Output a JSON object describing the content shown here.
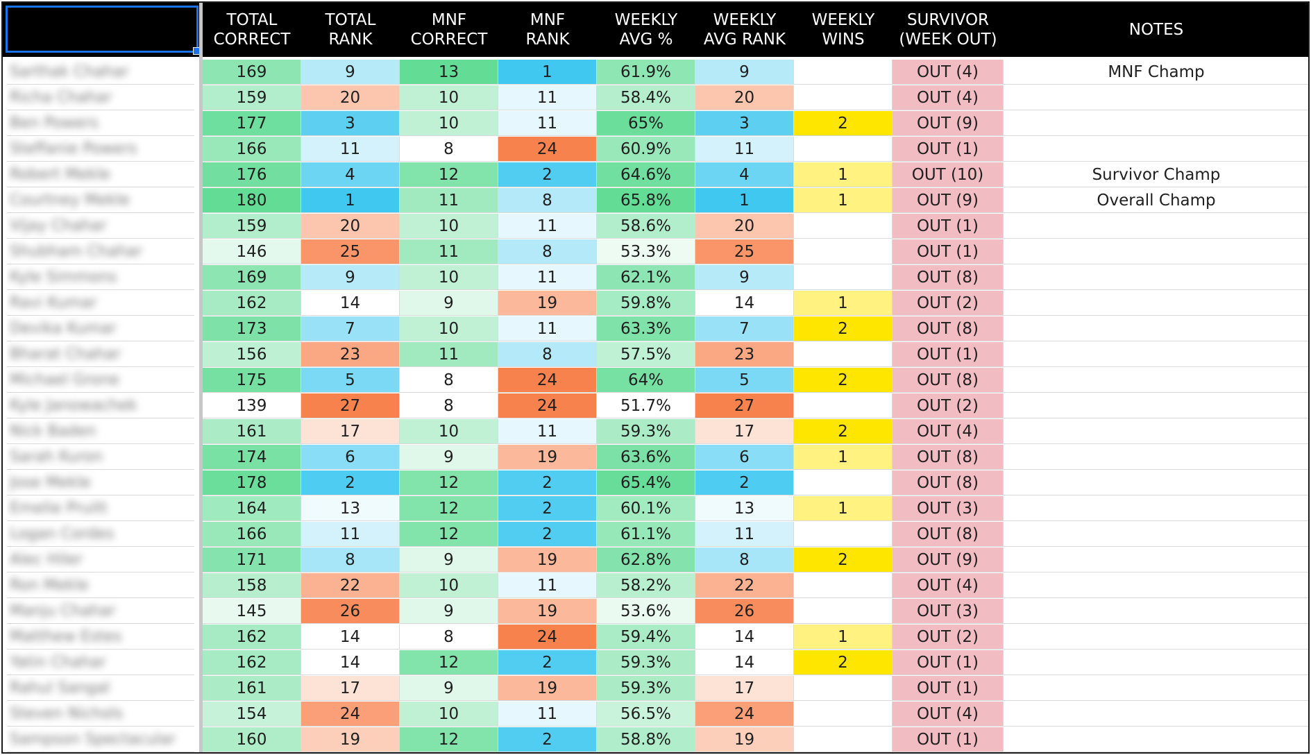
{
  "headers": [
    "",
    "TOTAL\nCORRECT",
    "TOTAL\nRANK",
    "MNF\nCORRECT",
    "MNF\nRANK",
    "WEEKLY\nAVG %",
    "WEEKLY\nAVG RANK",
    "WEEKLY\nWINS",
    "SURVIVOR\n(WEEK OUT)",
    "NOTES"
  ],
  "colors": {
    "header_bg": "#000000",
    "header_text": "#ffffff",
    "green_best": "#63dc96",
    "blue_best": "#40c8f0",
    "orange_worst": "#f8824e",
    "yellow_high": "#ffe600",
    "yellow_low": "#fff280",
    "survivor_bg": "#f2bcc3",
    "selection": "#1a73e8"
  },
  "rows": [
    {
      "name": "Sarthak Chahar",
      "total_correct": "169",
      "total_rank": "9",
      "mnf_correct": "13",
      "mnf_rank": "1",
      "weekly_avg": "61.9%",
      "weekly_avg_rank": "9",
      "weekly_wins": "",
      "survivor": "OUT (4)",
      "notes": "MNF Champ"
    },
    {
      "name": "Richa Chahar",
      "total_correct": "159",
      "total_rank": "20",
      "mnf_correct": "10",
      "mnf_rank": "11",
      "weekly_avg": "58.4%",
      "weekly_avg_rank": "20",
      "weekly_wins": "",
      "survivor": "OUT (4)",
      "notes": ""
    },
    {
      "name": "Ben Powers",
      "total_correct": "177",
      "total_rank": "3",
      "mnf_correct": "10",
      "mnf_rank": "11",
      "weekly_avg": "65%",
      "weekly_avg_rank": "3",
      "weekly_wins": "2",
      "survivor": "OUT (9)",
      "notes": ""
    },
    {
      "name": "Steffanie Powers",
      "total_correct": "166",
      "total_rank": "11",
      "mnf_correct": "8",
      "mnf_rank": "24",
      "weekly_avg": "60.9%",
      "weekly_avg_rank": "11",
      "weekly_wins": "",
      "survivor": "OUT (1)",
      "notes": ""
    },
    {
      "name": "Robert Mekle",
      "total_correct": "176",
      "total_rank": "4",
      "mnf_correct": "12",
      "mnf_rank": "2",
      "weekly_avg": "64.6%",
      "weekly_avg_rank": "4",
      "weekly_wins": "1",
      "survivor": "OUT (10)",
      "notes": "Survivor Champ"
    },
    {
      "name": "Courtney Mekle",
      "total_correct": "180",
      "total_rank": "1",
      "mnf_correct": "11",
      "mnf_rank": "8",
      "weekly_avg": "65.8%",
      "weekly_avg_rank": "1",
      "weekly_wins": "1",
      "survivor": "OUT (9)",
      "notes": "Overall Champ"
    },
    {
      "name": "Vijay Chahar",
      "total_correct": "159",
      "total_rank": "20",
      "mnf_correct": "10",
      "mnf_rank": "11",
      "weekly_avg": "58.6%",
      "weekly_avg_rank": "20",
      "weekly_wins": "",
      "survivor": "OUT (1)",
      "notes": ""
    },
    {
      "name": "Shubham Chahar",
      "total_correct": "146",
      "total_rank": "25",
      "mnf_correct": "11",
      "mnf_rank": "8",
      "weekly_avg": "53.3%",
      "weekly_avg_rank": "25",
      "weekly_wins": "",
      "survivor": "OUT (1)",
      "notes": ""
    },
    {
      "name": "Kyle Simmons",
      "total_correct": "169",
      "total_rank": "9",
      "mnf_correct": "10",
      "mnf_rank": "11",
      "weekly_avg": "62.1%",
      "weekly_avg_rank": "9",
      "weekly_wins": "",
      "survivor": "OUT (8)",
      "notes": ""
    },
    {
      "name": "Ravi Kumar",
      "total_correct": "162",
      "total_rank": "14",
      "mnf_correct": "9",
      "mnf_rank": "19",
      "weekly_avg": "59.8%",
      "weekly_avg_rank": "14",
      "weekly_wins": "1",
      "survivor": "OUT (2)",
      "notes": ""
    },
    {
      "name": "Devika Kumar",
      "total_correct": "173",
      "total_rank": "7",
      "mnf_correct": "10",
      "mnf_rank": "11",
      "weekly_avg": "63.3%",
      "weekly_avg_rank": "7",
      "weekly_wins": "2",
      "survivor": "OUT (8)",
      "notes": ""
    },
    {
      "name": "Bharat Chahar",
      "total_correct": "156",
      "total_rank": "23",
      "mnf_correct": "11",
      "mnf_rank": "8",
      "weekly_avg": "57.5%",
      "weekly_avg_rank": "23",
      "weekly_wins": "",
      "survivor": "OUT (1)",
      "notes": ""
    },
    {
      "name": "Michael Grone",
      "total_correct": "175",
      "total_rank": "5",
      "mnf_correct": "8",
      "mnf_rank": "24",
      "weekly_avg": "64%",
      "weekly_avg_rank": "5",
      "weekly_wins": "2",
      "survivor": "OUT (8)",
      "notes": ""
    },
    {
      "name": "Kyle Janowachek",
      "total_correct": "139",
      "total_rank": "27",
      "mnf_correct": "8",
      "mnf_rank": "24",
      "weekly_avg": "51.7%",
      "weekly_avg_rank": "27",
      "weekly_wins": "",
      "survivor": "OUT (2)",
      "notes": ""
    },
    {
      "name": "Nick Baden",
      "total_correct": "161",
      "total_rank": "17",
      "mnf_correct": "10",
      "mnf_rank": "11",
      "weekly_avg": "59.3%",
      "weekly_avg_rank": "17",
      "weekly_wins": "2",
      "survivor": "OUT (4)",
      "notes": ""
    },
    {
      "name": "Sarah Kuron",
      "total_correct": "174",
      "total_rank": "6",
      "mnf_correct": "9",
      "mnf_rank": "19",
      "weekly_avg": "63.6%",
      "weekly_avg_rank": "6",
      "weekly_wins": "1",
      "survivor": "OUT (8)",
      "notes": ""
    },
    {
      "name": "Jose Mekle",
      "total_correct": "178",
      "total_rank": "2",
      "mnf_correct": "12",
      "mnf_rank": "2",
      "weekly_avg": "65.4%",
      "weekly_avg_rank": "2",
      "weekly_wins": "",
      "survivor": "OUT (8)",
      "notes": ""
    },
    {
      "name": "Emelie Pruitt",
      "total_correct": "164",
      "total_rank": "13",
      "mnf_correct": "12",
      "mnf_rank": "2",
      "weekly_avg": "60.1%",
      "weekly_avg_rank": "13",
      "weekly_wins": "1",
      "survivor": "OUT (3)",
      "notes": ""
    },
    {
      "name": "Logan Cordes",
      "total_correct": "166",
      "total_rank": "11",
      "mnf_correct": "12",
      "mnf_rank": "2",
      "weekly_avg": "61.1%",
      "weekly_avg_rank": "11",
      "weekly_wins": "",
      "survivor": "OUT (8)",
      "notes": ""
    },
    {
      "name": "Alec Hiler",
      "total_correct": "171",
      "total_rank": "8",
      "mnf_correct": "9",
      "mnf_rank": "19",
      "weekly_avg": "62.8%",
      "weekly_avg_rank": "8",
      "weekly_wins": "2",
      "survivor": "OUT (9)",
      "notes": ""
    },
    {
      "name": "Ron Mekle",
      "total_correct": "158",
      "total_rank": "22",
      "mnf_correct": "10",
      "mnf_rank": "11",
      "weekly_avg": "58.2%",
      "weekly_avg_rank": "22",
      "weekly_wins": "",
      "survivor": "OUT (4)",
      "notes": ""
    },
    {
      "name": "Manju Chahar",
      "total_correct": "145",
      "total_rank": "26",
      "mnf_correct": "9",
      "mnf_rank": "19",
      "weekly_avg": "53.6%",
      "weekly_avg_rank": "26",
      "weekly_wins": "",
      "survivor": "OUT (3)",
      "notes": ""
    },
    {
      "name": "Matthew Estes",
      "total_correct": "162",
      "total_rank": "14",
      "mnf_correct": "8",
      "mnf_rank": "24",
      "weekly_avg": "59.4%",
      "weekly_avg_rank": "14",
      "weekly_wins": "1",
      "survivor": "OUT (2)",
      "notes": ""
    },
    {
      "name": "Yatin Chahar",
      "total_correct": "162",
      "total_rank": "14",
      "mnf_correct": "12",
      "mnf_rank": "2",
      "weekly_avg": "59.3%",
      "weekly_avg_rank": "14",
      "weekly_wins": "2",
      "survivor": "OUT (1)",
      "notes": ""
    },
    {
      "name": "Rahul Sangal",
      "total_correct": "161",
      "total_rank": "17",
      "mnf_correct": "9",
      "mnf_rank": "19",
      "weekly_avg": "59.3%",
      "weekly_avg_rank": "17",
      "weekly_wins": "",
      "survivor": "OUT (1)",
      "notes": ""
    },
    {
      "name": "Steven Nichols",
      "total_correct": "154",
      "total_rank": "24",
      "mnf_correct": "10",
      "mnf_rank": "11",
      "weekly_avg": "56.5%",
      "weekly_avg_rank": "24",
      "weekly_wins": "",
      "survivor": "OUT (4)",
      "notes": ""
    },
    {
      "name": "Sampson Spectacular",
      "total_correct": "160",
      "total_rank": "19",
      "mnf_correct": "12",
      "mnf_rank": "2",
      "weekly_avg": "58.8%",
      "weekly_avg_rank": "19",
      "weekly_wins": "",
      "survivor": "OUT (1)",
      "notes": ""
    }
  ]
}
